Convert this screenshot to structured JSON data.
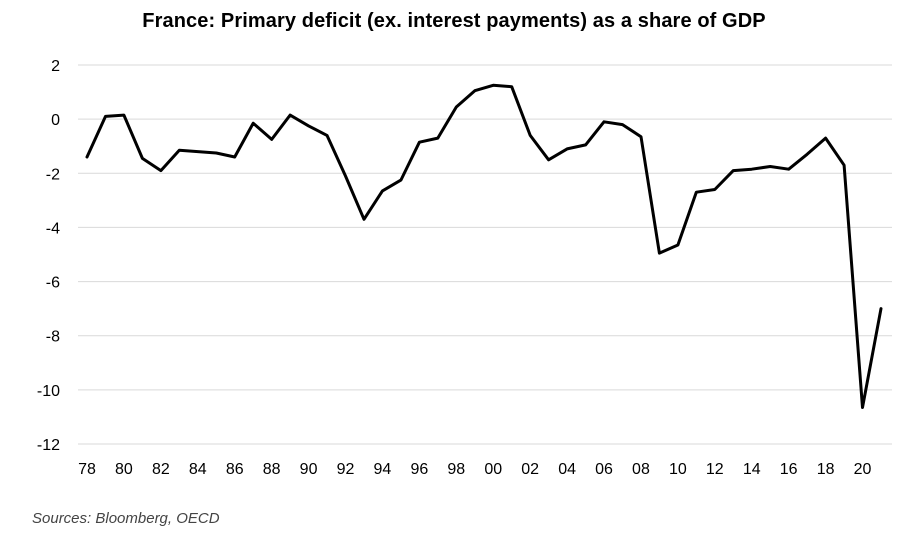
{
  "chart_data": {
    "type": "line",
    "title": "France: Primary deficit (ex. interest payments) as a share of GDP",
    "source": "Sources: Bloomberg, OECD",
    "xlabel": "",
    "ylabel": "",
    "ylim": [
      -12,
      2
    ],
    "xlim": [
      1978,
      2021
    ],
    "yticks": [
      2,
      0,
      -2,
      -4,
      -6,
      -8,
      -10,
      -12
    ],
    "xticks": [
      {
        "year": 1978,
        "label": "78"
      },
      {
        "year": 1980,
        "label": "80"
      },
      {
        "year": 1982,
        "label": "82"
      },
      {
        "year": 1984,
        "label": "84"
      },
      {
        "year": 1986,
        "label": "86"
      },
      {
        "year": 1988,
        "label": "88"
      },
      {
        "year": 1990,
        "label": "90"
      },
      {
        "year": 1992,
        "label": "92"
      },
      {
        "year": 1994,
        "label": "94"
      },
      {
        "year": 1996,
        "label": "96"
      },
      {
        "year": 1998,
        "label": "98"
      },
      {
        "year": 2000,
        "label": "00"
      },
      {
        "year": 2002,
        "label": "02"
      },
      {
        "year": 2004,
        "label": "04"
      },
      {
        "year": 2006,
        "label": "06"
      },
      {
        "year": 2008,
        "label": "08"
      },
      {
        "year": 2010,
        "label": "10"
      },
      {
        "year": 2012,
        "label": "12"
      },
      {
        "year": 2014,
        "label": "14"
      },
      {
        "year": 2016,
        "label": "16"
      },
      {
        "year": 2018,
        "label": "18"
      },
      {
        "year": 2020,
        "label": "20"
      }
    ],
    "grid": true,
    "legend": "none",
    "line_color": "#000000",
    "grid_color": "#d9d9d9",
    "series": [
      {
        "x": [
          1978,
          1979,
          1980,
          1981,
          1982,
          1983,
          1984,
          1985,
          1986,
          1987,
          1988,
          1989,
          1990,
          1991,
          1992,
          1993,
          1994,
          1995,
          1996,
          1997,
          1998,
          1999,
          2000,
          2001,
          2002,
          2003,
          2004,
          2005,
          2006,
          2007,
          2008,
          2009,
          2010,
          2011,
          2012,
          2013,
          2014,
          2015,
          2016,
          2017,
          2018,
          2019,
          2020,
          2021
        ],
        "values": [
          -1.4,
          0.1,
          0.15,
          -1.45,
          -1.9,
          -1.15,
          -1.2,
          -1.25,
          -1.4,
          -0.15,
          -0.75,
          0.15,
          -0.25,
          -0.6,
          -2.1,
          -3.7,
          -2.65,
          -2.25,
          -0.85,
          -0.7,
          0.45,
          1.05,
          1.25,
          1.2,
          -0.6,
          -1.5,
          -1.1,
          -0.95,
          -0.1,
          -0.2,
          -0.65,
          -4.95,
          -4.65,
          -2.7,
          -2.6,
          -1.9,
          -1.85,
          -1.75,
          -1.85,
          -1.3,
          -0.7,
          -1.7,
          -10.65,
          -7.0
        ]
      }
    ]
  }
}
